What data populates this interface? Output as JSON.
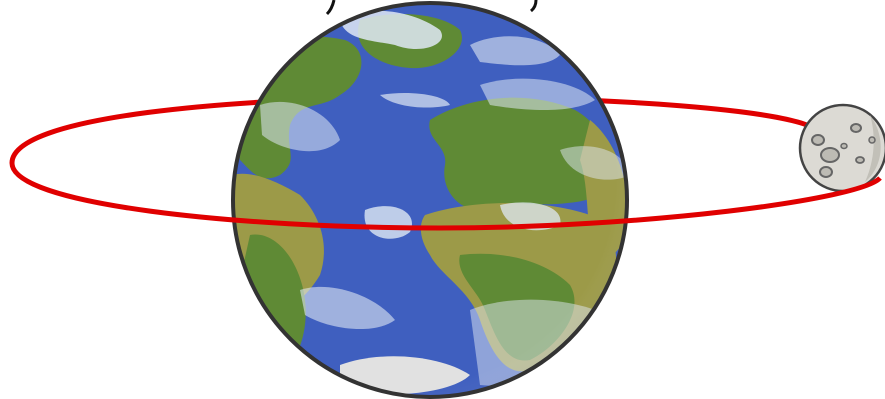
{
  "scene": {
    "objects": [
      "earth",
      "moon",
      "orbit"
    ],
    "colors": {
      "background": "#ffffff",
      "ocean": "#3f5fbf",
      "land": "#5f8a35",
      "desert": "#9c9a48",
      "cloud": "#dfe8f4",
      "outline": "#333333",
      "orbit": "#e00000",
      "moon": "#dcdad4",
      "crater": "#777777"
    }
  }
}
